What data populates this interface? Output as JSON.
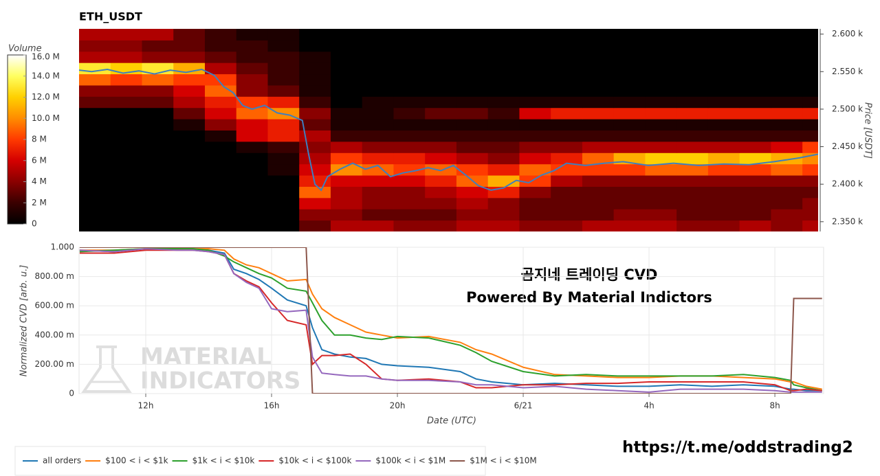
{
  "chart_data": [
    {
      "type": "heatmap",
      "title": "ETH_USDT",
      "y_label": "Price [USDT]",
      "colorbar_title": "Volume",
      "colormap": [
        "#000000",
        "#3a0000",
        "#8a0000",
        "#d40000",
        "#ff3a00",
        "#ff8c00",
        "#ffd000",
        "#ffff60",
        "#ffffff"
      ],
      "zlim": [
        0,
        16
      ],
      "zticks": [
        0,
        {
          "value": 2,
          "label": "2 M"
        },
        {
          "value": 4,
          "label": "4 M"
        },
        {
          "value": 6,
          "label": "6 M"
        },
        {
          "value": 8,
          "label": "8 M"
        },
        {
          "value": 10,
          "label": "10.0 M"
        },
        {
          "value": 12,
          "label": "12.0 M"
        },
        {
          "value": 14,
          "label": "14.0 M"
        },
        {
          "value": 16,
          "label": "16.0 M"
        }
      ],
      "xlim": [
        9.9,
        33.4
      ],
      "ylim": [
        2337,
        2607
      ],
      "yticks": [
        {
          "value": 2350,
          "label": "2.350 k"
        },
        {
          "value": 2400,
          "label": "2.400 k"
        },
        {
          "value": 2450,
          "label": "2.450 k"
        },
        {
          "value": 2500,
          "label": "2.500 k"
        },
        {
          "value": 2550,
          "label": "2.550 k"
        },
        {
          "value": 2600,
          "label": "2.600 k"
        }
      ],
      "x_edges": [
        9.9,
        10.9,
        11.9,
        12.9,
        13.9,
        14.9,
        15.9,
        16.9,
        17.9,
        18.9,
        19.9,
        20.9,
        21.9,
        22.9,
        23.9,
        24.9,
        25.9,
        26.9,
        27.9,
        28.9,
        29.9,
        30.9,
        31.9,
        32.9,
        33.4
      ],
      "y_edges": [
        2337,
        2352,
        2367,
        2382,
        2397,
        2412,
        2427,
        2442,
        2457,
        2472,
        2487,
        2502,
        2517,
        2532,
        2547,
        2562,
        2577,
        2592,
        2607
      ],
      "values": [
        [
          0,
          0,
          0,
          0,
          0,
          0,
          0,
          3,
          5,
          5,
          4,
          4,
          5,
          5,
          4,
          4,
          5,
          5,
          5,
          4,
          4,
          5,
          4,
          5
        ],
        [
          0,
          0,
          0,
          0,
          0,
          0,
          0,
          4,
          4,
          3,
          3,
          3,
          4,
          4,
          3,
          3,
          3,
          4,
          4,
          3,
          3,
          3,
          4,
          4
        ],
        [
          0,
          0,
          0,
          0,
          0,
          0,
          0,
          6,
          5,
          4,
          4,
          4,
          5,
          4,
          3,
          3,
          3,
          3,
          3,
          3,
          3,
          3,
          3,
          4
        ],
        [
          0,
          0,
          0,
          0,
          0,
          0,
          0,
          9,
          5,
          4,
          4,
          5,
          6,
          7,
          4,
          3,
          3,
          3,
          3,
          3,
          3,
          3,
          3,
          3
        ],
        [
          0,
          0,
          0,
          0,
          0,
          0,
          0,
          7,
          6,
          6,
          6,
          7,
          9,
          11,
          8,
          5,
          4,
          4,
          4,
          4,
          4,
          4,
          4,
          4
        ],
        [
          0,
          0,
          0,
          0,
          0,
          0,
          1,
          6,
          10,
          9,
          8,
          9,
          8,
          7,
          9,
          8,
          8,
          8,
          9,
          9,
          8,
          8,
          9,
          8
        ],
        [
          0,
          0,
          0,
          0,
          0,
          0,
          1,
          5,
          8,
          7,
          7,
          6,
          5,
          4,
          6,
          7,
          9,
          11,
          12,
          12,
          11,
          12,
          11,
          10
        ],
        [
          0,
          0,
          0,
          0,
          0,
          1,
          2,
          4,
          5,
          4,
          4,
          4,
          3,
          3,
          4,
          4,
          5,
          5,
          5,
          5,
          5,
          5,
          6,
          8
        ],
        [
          0,
          0,
          0,
          0,
          1,
          6,
          7,
          5,
          2,
          2,
          2,
          2,
          2,
          2,
          2,
          2,
          2,
          2,
          2,
          2,
          2,
          2,
          2,
          2
        ],
        [
          0,
          0,
          0,
          1,
          4,
          6,
          7,
          3,
          1,
          1,
          1,
          1,
          1,
          1,
          1,
          1,
          1,
          1,
          1,
          1,
          1,
          1,
          1,
          1
        ],
        [
          0,
          0,
          0,
          3,
          6,
          9,
          10,
          4,
          1,
          1,
          2,
          3,
          3,
          2,
          6,
          7,
          7,
          7,
          7,
          7,
          7,
          7,
          7,
          7
        ],
        [
          3,
          3,
          3,
          5,
          7,
          8,
          7,
          2,
          0,
          1,
          1,
          1,
          1,
          1,
          1,
          1,
          1,
          1,
          1,
          1,
          1,
          1,
          1,
          1
        ],
        [
          4,
          4,
          4,
          6,
          9,
          4,
          3,
          1,
          0,
          0,
          0,
          0,
          0,
          0,
          0,
          0,
          0,
          0,
          0,
          0,
          0,
          0,
          0,
          0
        ],
        [
          9,
          8,
          9,
          8,
          8,
          4,
          2,
          1,
          0,
          0,
          0,
          0,
          0,
          0,
          0,
          0,
          0,
          0,
          0,
          0,
          0,
          0,
          0,
          0
        ],
        [
          13,
          12,
          13,
          11,
          5,
          3,
          2,
          1,
          0,
          0,
          0,
          0,
          0,
          0,
          0,
          0,
          0,
          0,
          0,
          0,
          0,
          0,
          0,
          0
        ],
        [
          5,
          5,
          4,
          4,
          3,
          2,
          2,
          1,
          0,
          0,
          0,
          0,
          0,
          0,
          0,
          0,
          0,
          0,
          0,
          0,
          0,
          0,
          0,
          0
        ],
        [
          4,
          4,
          3,
          3,
          2,
          2,
          1,
          0,
          0,
          0,
          0,
          0,
          0,
          0,
          0,
          0,
          0,
          0,
          0,
          0,
          0,
          0,
          0,
          0
        ],
        [
          5,
          5,
          5,
          3,
          2,
          1,
          1,
          0,
          0,
          0,
          0,
          0,
          0,
          0,
          0,
          0,
          0,
          0,
          0,
          0,
          0,
          0,
          0,
          0
        ]
      ],
      "line": {
        "color": "#3d7fc0",
        "x": [
          9.9,
          10.3,
          10.8,
          11.3,
          11.8,
          12.3,
          12.8,
          13.3,
          13.8,
          14.2,
          14.5,
          14.8,
          15.1,
          15.4,
          15.8,
          16.2,
          16.6,
          17.0,
          17.2,
          17.4,
          17.6,
          17.8,
          18.2,
          18.6,
          19.0,
          19.4,
          19.8,
          20.2,
          20.6,
          21.0,
          21.4,
          21.8,
          22.2,
          22.6,
          23.0,
          23.4,
          23.8,
          24.2,
          24.6,
          25.0,
          25.4,
          26.0,
          26.6,
          27.2,
          28.0,
          28.8,
          29.6,
          30.4,
          31.2,
          32.0,
          32.8,
          33.4
        ],
        "values": [
          2552,
          2550,
          2553,
          2548,
          2551,
          2547,
          2552,
          2549,
          2553,
          2545,
          2530,
          2522,
          2505,
          2500,
          2505,
          2495,
          2492,
          2485,
          2440,
          2400,
          2392,
          2410,
          2420,
          2428,
          2420,
          2425,
          2410,
          2415,
          2418,
          2422,
          2418,
          2425,
          2412,
          2398,
          2392,
          2395,
          2405,
          2402,
          2412,
          2418,
          2428,
          2425,
          2428,
          2430,
          2425,
          2428,
          2425,
          2427,
          2426,
          2430,
          2435,
          2440
        ]
      }
    },
    {
      "type": "line",
      "x_label": "Date (UTC)",
      "y_label": "Normalized CVD [arb. u.]",
      "annotations": [
        "곰지네 트레이딩 CVD",
        "Powered By Material Indictors"
      ],
      "watermark": [
        "MATERIAL",
        "INDICATORS"
      ],
      "xlim": [
        9.88,
        33.55
      ],
      "ylim": [
        0,
        1
      ],
      "grid": true,
      "xticks": [
        {
          "value": 12,
          "label": "12h"
        },
        {
          "value": 16,
          "label": "16h"
        },
        {
          "value": 20,
          "label": "20h"
        },
        {
          "value": 24,
          "label": "6/21"
        },
        {
          "value": 28,
          "label": "4h"
        },
        {
          "value": 32,
          "label": "8h"
        }
      ],
      "yticks": [
        0,
        {
          "value": 0.2,
          "label": "200.00 m"
        },
        {
          "value": 0.4,
          "label": "400.00 m"
        },
        {
          "value": 0.6,
          "label": "600.00 m"
        },
        {
          "value": 0.8,
          "label": "800.00 m"
        },
        {
          "value": 1,
          "label": "1.000"
        }
      ],
      "x": [
        9.9,
        11,
        12,
        13,
        13.5,
        14,
        14.5,
        14.8,
        15.2,
        15.6,
        16,
        16.5,
        17.1,
        17.3,
        17.6,
        18,
        18.5,
        19,
        19.5,
        20,
        21,
        22,
        22.5,
        23,
        24,
        25,
        26,
        27,
        28,
        29,
        30,
        31,
        32,
        32.5,
        32.6,
        33,
        33.5
      ],
      "series": [
        {
          "name": "all orders",
          "color": "#1f77b4",
          "values": [
            0.98,
            0.97,
            0.99,
            0.99,
            0.99,
            0.98,
            0.96,
            0.85,
            0.82,
            0.78,
            0.72,
            0.64,
            0.6,
            0.45,
            0.3,
            0.27,
            0.25,
            0.24,
            0.2,
            0.19,
            0.18,
            0.15,
            0.1,
            0.08,
            0.06,
            0.07,
            0.06,
            0.05,
            0.05,
            0.06,
            0.05,
            0.06,
            0.05,
            0.03,
            0.03,
            0.02,
            0.02
          ]
        },
        {
          "name": "$100 < i < $1k",
          "color": "#ff7f0e",
          "values": [
            0.98,
            0.98,
            0.99,
            0.99,
            0.99,
            0.99,
            0.98,
            0.92,
            0.88,
            0.86,
            0.82,
            0.77,
            0.78,
            0.68,
            0.58,
            0.52,
            0.47,
            0.42,
            0.4,
            0.38,
            0.39,
            0.35,
            0.3,
            0.27,
            0.18,
            0.13,
            0.12,
            0.11,
            0.11,
            0.12,
            0.12,
            0.11,
            0.1,
            0.08,
            0.08,
            0.05,
            0.03
          ]
        },
        {
          "name": "$1k < i < $10k",
          "color": "#2ca02c",
          "values": [
            0.97,
            0.98,
            0.99,
            0.99,
            0.99,
            0.98,
            0.94,
            0.9,
            0.86,
            0.82,
            0.79,
            0.72,
            0.7,
            0.62,
            0.5,
            0.4,
            0.4,
            0.38,
            0.37,
            0.39,
            0.38,
            0.33,
            0.28,
            0.22,
            0.15,
            0.12,
            0.13,
            0.12,
            0.12,
            0.12,
            0.12,
            0.13,
            0.11,
            0.09,
            0.06,
            0.04,
            0.02
          ]
        },
        {
          "name": "$10k < i < $100k",
          "color": "#d62728",
          "values": [
            0.96,
            0.96,
            0.98,
            0.98,
            0.98,
            0.97,
            0.95,
            0.82,
            0.77,
            0.73,
            0.62,
            0.5,
            0.47,
            0.2,
            0.26,
            0.26,
            0.27,
            0.2,
            0.1,
            0.09,
            0.1,
            0.08,
            0.04,
            0.04,
            0.06,
            0.06,
            0.07,
            0.07,
            0.08,
            0.08,
            0.08,
            0.08,
            0.06,
            0.02,
            0.02,
            0.03,
            0.02
          ]
        },
        {
          "name": "$100k < i < $1M",
          "color": "#9467bd",
          "values": [
            0.98,
            0.97,
            0.99,
            0.98,
            0.98,
            0.97,
            0.95,
            0.82,
            0.76,
            0.72,
            0.58,
            0.56,
            0.57,
            0.25,
            0.14,
            0.13,
            0.12,
            0.12,
            0.1,
            0.09,
            0.09,
            0.08,
            0.06,
            0.06,
            0.04,
            0.05,
            0.03,
            0.02,
            0.01,
            0.03,
            0.03,
            0.03,
            0.02,
            0.01,
            0.01,
            0.01,
            0.01
          ]
        },
        {
          "name": "$1M < i < $10M",
          "color": "#8c564b",
          "values": [
            1,
            1,
            1,
            1,
            1,
            1,
            1,
            1,
            1,
            1,
            1,
            1,
            1,
            0,
            0,
            0,
            0,
            0,
            0,
            0,
            0,
            0,
            0,
            0,
            0,
            0,
            0,
            0,
            0,
            0,
            0,
            0,
            0,
            0,
            0.65,
            0.65,
            0.65
          ]
        }
      ]
    }
  ],
  "caption": "https://t.me/oddstrading2"
}
